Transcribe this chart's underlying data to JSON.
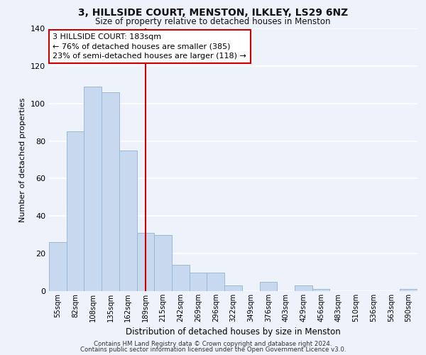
{
  "title": "3, HILLSIDE COURT, MENSTON, ILKLEY, LS29 6NZ",
  "subtitle": "Size of property relative to detached houses in Menston",
  "xlabel": "Distribution of detached houses by size in Menston",
  "ylabel": "Number of detached properties",
  "categories": [
    "55sqm",
    "82sqm",
    "108sqm",
    "135sqm",
    "162sqm",
    "189sqm",
    "215sqm",
    "242sqm",
    "269sqm",
    "296sqm",
    "322sqm",
    "349sqm",
    "376sqm",
    "403sqm",
    "429sqm",
    "456sqm",
    "483sqm",
    "510sqm",
    "536sqm",
    "563sqm",
    "590sqm"
  ],
  "values": [
    26,
    85,
    109,
    106,
    75,
    31,
    30,
    14,
    10,
    10,
    3,
    0,
    5,
    0,
    3,
    1,
    0,
    0,
    0,
    0,
    1
  ],
  "bar_color": "#c8d9ef",
  "bar_edge_color": "#9ab8d8",
  "vline_x": 5,
  "vline_color": "#cc0000",
  "ylim": [
    0,
    140
  ],
  "yticks": [
    0,
    20,
    40,
    60,
    80,
    100,
    120,
    140
  ],
  "annotation_text": "3 HILLSIDE COURT: 183sqm\n← 76% of detached houses are smaller (385)\n23% of semi-detached houses are larger (118) →",
  "annotation_box_color": "#ffffff",
  "annotation_box_edge": "#cc0000",
  "footer_line1": "Contains HM Land Registry data © Crown copyright and database right 2024.",
  "footer_line2": "Contains public sector information licensed under the Open Government Licence v3.0.",
  "background_color": "#eef2fb",
  "grid_color": "#ffffff"
}
